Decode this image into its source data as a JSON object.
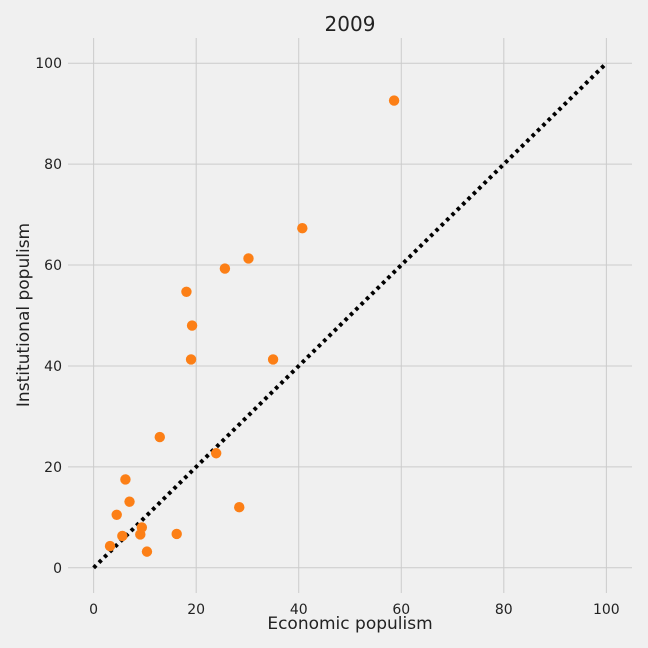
{
  "chart_data": {
    "type": "scatter",
    "title": "2009",
    "xlabel": "Economic populism",
    "ylabel": "Institutional populism",
    "xlim": [
      -5,
      105
    ],
    "ylim": [
      -5,
      105
    ],
    "xticks": [
      0,
      20,
      40,
      60,
      80,
      100
    ],
    "yticks": [
      0,
      20,
      40,
      60,
      80,
      100
    ],
    "grid": true,
    "colors": {
      "background": "#f0f0f0",
      "grid": "#cbcbcb",
      "points": "#fc7f16",
      "reference_line": "#000000"
    },
    "reference_line": {
      "style": "dotted",
      "x": [
        0,
        100
      ],
      "y": [
        0,
        100
      ]
    },
    "series": [
      {
        "x": [
          3.2,
          4.5,
          5.6,
          6.2,
          7.0,
          9.1,
          9.4,
          10.4,
          12.9,
          16.2,
          18.1,
          19.0,
          19.2,
          23.9,
          25.6,
          28.4,
          30.2,
          35.0,
          40.7,
          58.6
        ],
        "y": [
          4.3,
          10.5,
          6.3,
          17.5,
          13.1,
          6.6,
          8.0,
          3.2,
          25.9,
          6.7,
          54.7,
          41.3,
          48.0,
          22.7,
          59.3,
          12.0,
          61.3,
          41.3,
          67.3,
          92.6
        ]
      }
    ]
  }
}
